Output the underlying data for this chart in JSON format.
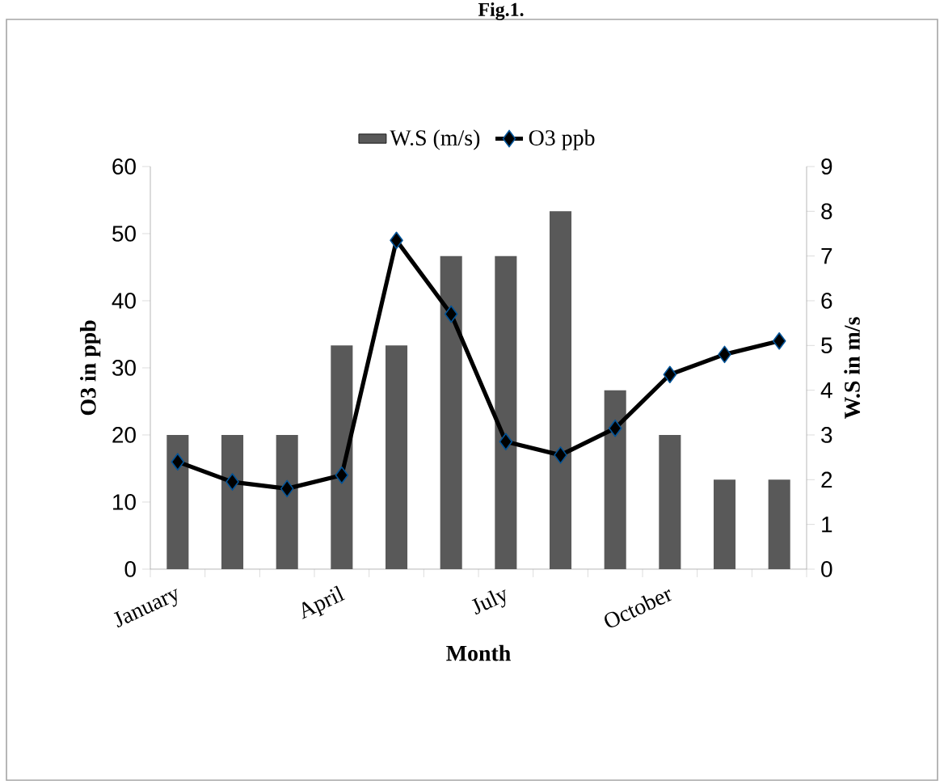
{
  "chart_data": {
    "type": "bar",
    "title": "Fig.1.",
    "xlabel": "Month",
    "ylabel": "O3 in ppb",
    "y2label": "W.S in m/s",
    "categories": [
      "January",
      null,
      null,
      "April",
      null,
      null,
      "July",
      null,
      null,
      "October",
      null,
      null
    ],
    "series": [
      {
        "name": "W.S (m/s)",
        "color": "#595959",
        "axis": "y2",
        "values": [
          3,
          3,
          3,
          5,
          5,
          7,
          7,
          8,
          4,
          3,
          2,
          2
        ]
      },
      {
        "name": "O3 ppb",
        "type": "line",
        "color": "#000000",
        "values": [
          16,
          13,
          12,
          14,
          49,
          38,
          19,
          17,
          21,
          29,
          32,
          34
        ]
      }
    ],
    "ylim": [
      0,
      60
    ],
    "yticks": [
      0,
      10,
      20,
      30,
      40,
      50,
      60
    ],
    "y2lim": [
      0,
      9
    ],
    "y2ticks": [
      0,
      1,
      2,
      3,
      4,
      5,
      6,
      7,
      8,
      9
    ],
    "marker": "diamond",
    "legend": "top",
    "grid": false
  }
}
